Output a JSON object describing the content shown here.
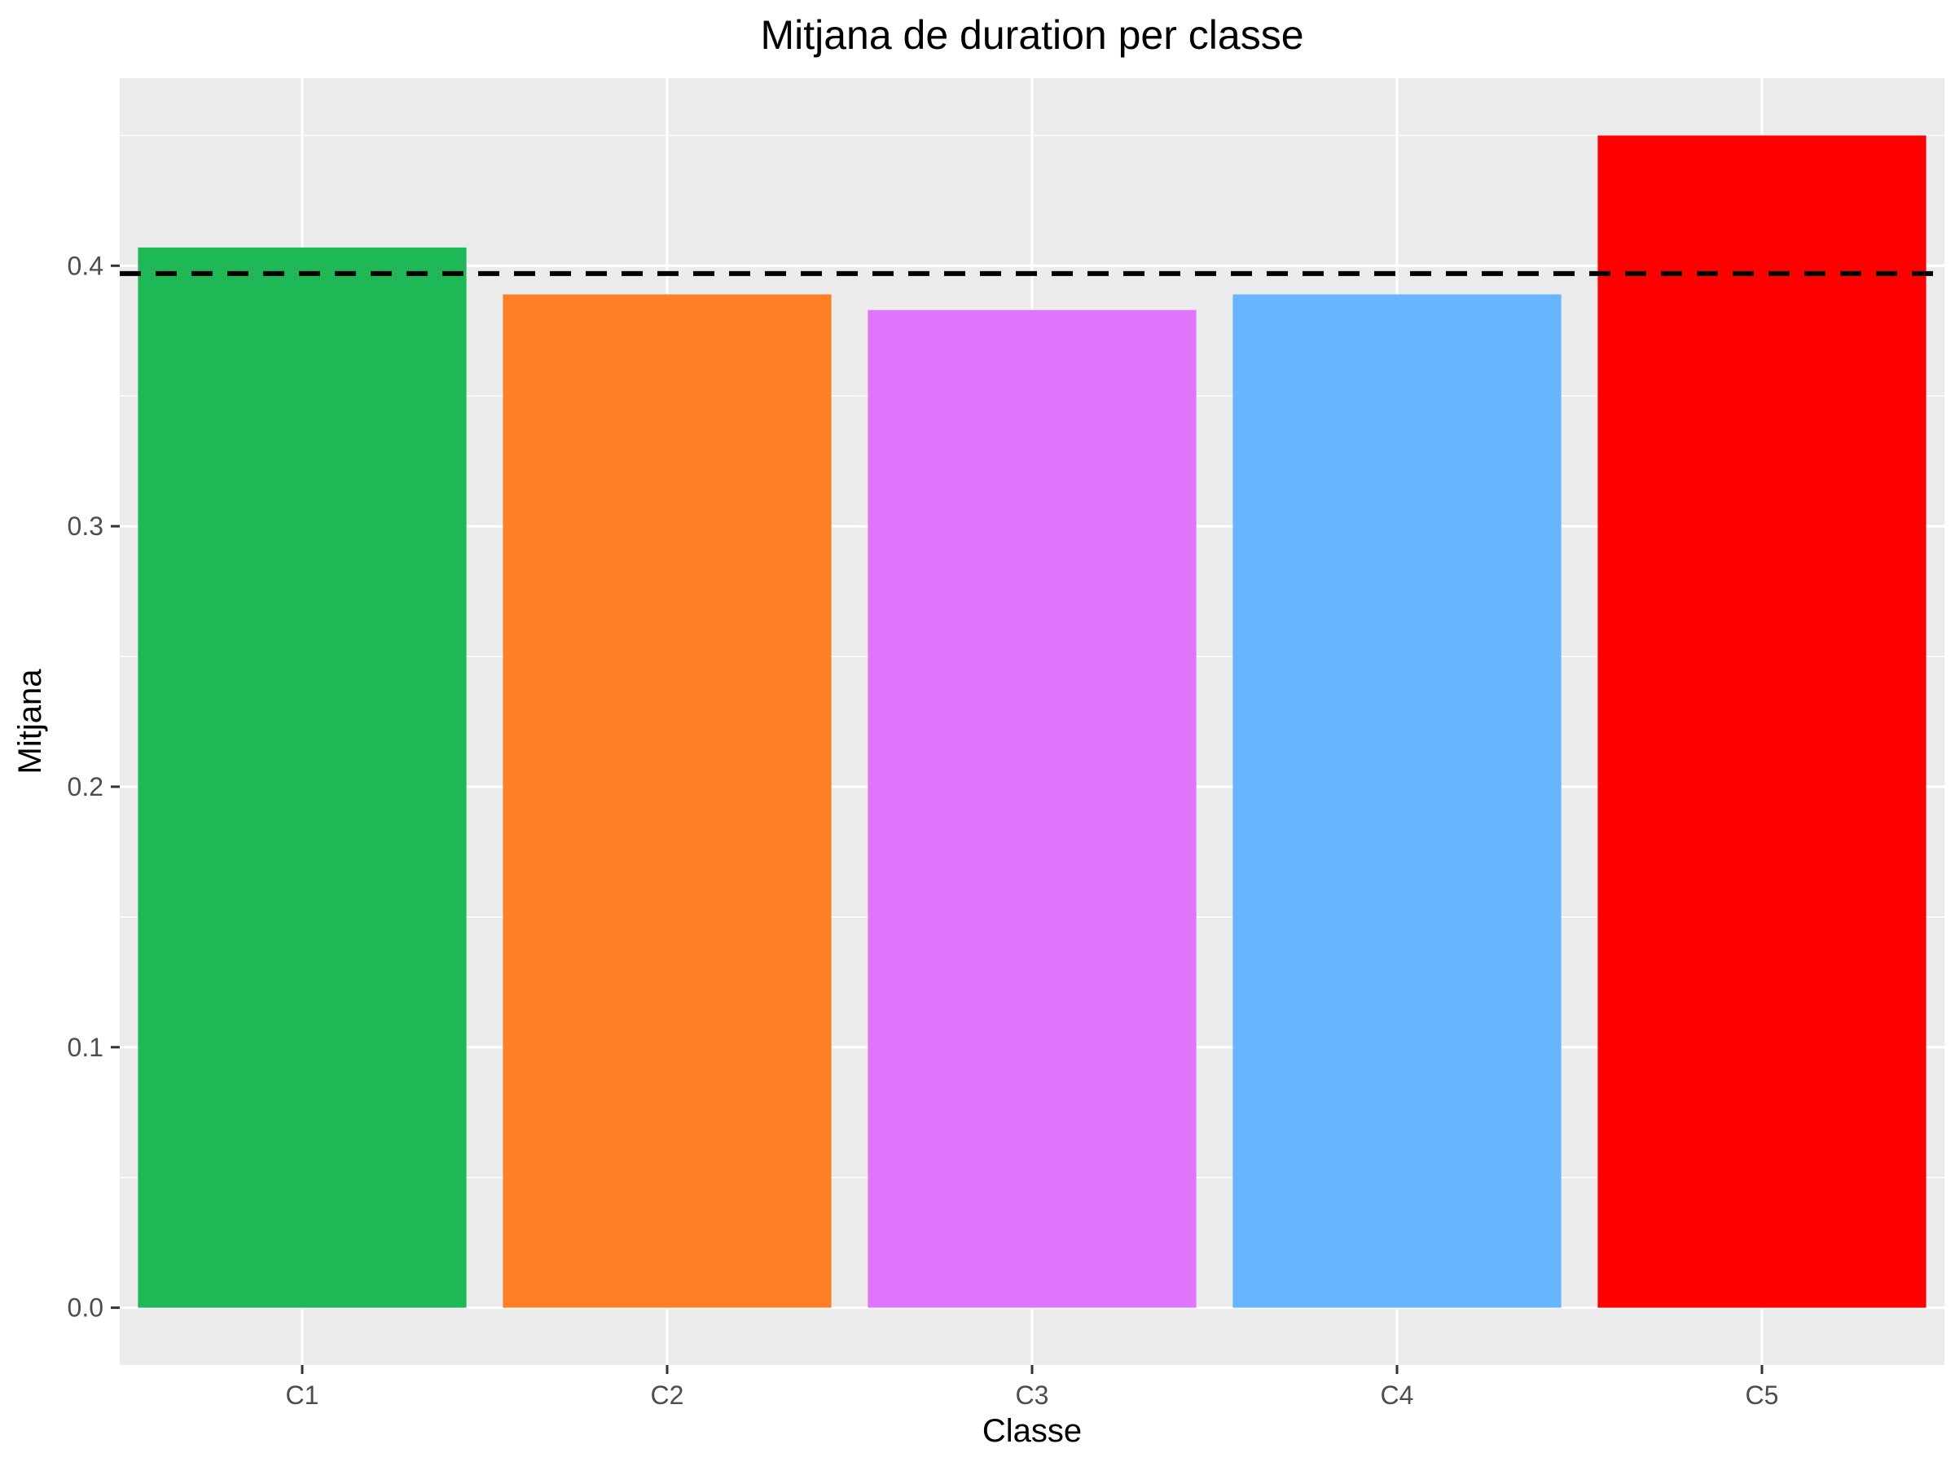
{
  "chart_data": {
    "type": "bar",
    "title": "Mitjana de duration per classe",
    "xlabel": "Classe",
    "ylabel": "Mitjana",
    "categories": [
      "C1",
      "C2",
      "C3",
      "C4",
      "C5"
    ],
    "values": [
      0.407,
      0.389,
      0.383,
      0.389,
      0.45
    ],
    "bar_colors": [
      "#1FB856",
      "#FF7F27",
      "#DF75FA",
      "#68B4FF",
      "#FF0000"
    ],
    "reference_line": {
      "value": 0.397,
      "style": "dashed",
      "color": "#000000"
    },
    "ylim": [
      -0.022,
      0.472
    ],
    "y_ticks": [
      0.0,
      0.1,
      0.2,
      0.3,
      0.4
    ],
    "y_tick_labels": [
      "0.0",
      "0.1",
      "0.2",
      "0.3",
      "0.4"
    ],
    "grid": true,
    "legend": "none",
    "panel_background": "#EBEBEB",
    "grid_color": "#FFFFFF"
  }
}
